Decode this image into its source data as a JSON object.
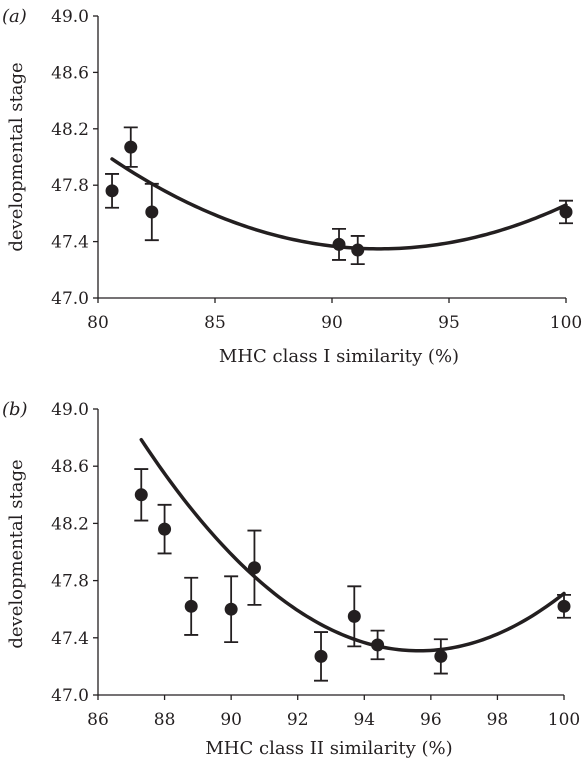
{
  "chart_data": [
    {
      "type": "scatter",
      "panel_label": "(a)",
      "title": "",
      "xlabel": "MHC class I similarity (%)",
      "ylabel": "developmental stage",
      "xlim": [
        80,
        100
      ],
      "ylim": [
        47.0,
        49.0
      ],
      "xticks": [
        "80",
        "85",
        "90",
        "95",
        "100"
      ],
      "yticks": [
        "47.0",
        "47.4",
        "47.8",
        "48.2",
        "48.6",
        "49.0"
      ],
      "grid": false,
      "points": [
        {
          "x": 80.6,
          "y": 47.76,
          "err": 0.12
        },
        {
          "x": 81.4,
          "y": 48.07,
          "err": 0.14
        },
        {
          "x": 82.3,
          "y": 47.61,
          "err": 0.2
        },
        {
          "x": 90.3,
          "y": 47.38,
          "err": 0.11
        },
        {
          "x": 91.1,
          "y": 47.34,
          "err": 0.1
        },
        {
          "x": 100.0,
          "y": 47.61,
          "err": 0.08
        }
      ],
      "fit": {
        "type": "quadratic",
        "x_range": [
          80.6,
          100.0
        ],
        "coef": [
          0.004885,
          -0.89906,
          88.7155
        ]
      }
    },
    {
      "type": "scatter",
      "panel_label": "(b)",
      "title": "",
      "xlabel": "MHC class II similarity (%)",
      "ylabel": "developmental stage",
      "xlim": [
        86,
        100
      ],
      "ylim": [
        47.0,
        49.0
      ],
      "xticks": [
        "86",
        "88",
        "90",
        "92",
        "94",
        "96",
        "98",
        "100"
      ],
      "yticks": [
        "47.0",
        "47.4",
        "47.8",
        "48.2",
        "48.6",
        "49.0"
      ],
      "grid": false,
      "points": [
        {
          "x": 87.3,
          "y": 48.4,
          "err": 0.18
        },
        {
          "x": 88.0,
          "y": 48.16,
          "err": 0.17
        },
        {
          "x": 88.8,
          "y": 47.62,
          "err": 0.2
        },
        {
          "x": 90.0,
          "y": 47.6,
          "err": 0.23
        },
        {
          "x": 90.7,
          "y": 47.89,
          "err": 0.26
        },
        {
          "x": 92.7,
          "y": 47.27,
          "err": 0.17
        },
        {
          "x": 93.7,
          "y": 47.55,
          "err": 0.21
        },
        {
          "x": 94.4,
          "y": 47.35,
          "err": 0.1
        },
        {
          "x": 96.3,
          "y": 47.27,
          "err": 0.12
        },
        {
          "x": 100.0,
          "y": 47.62,
          "err": 0.08
        }
      ],
      "fit": {
        "type": "quadratic",
        "x_range": [
          87.3,
          100.0
        ],
        "coef": [
          0.02118,
          -4.0517,
          241.08
        ]
      }
    }
  ]
}
